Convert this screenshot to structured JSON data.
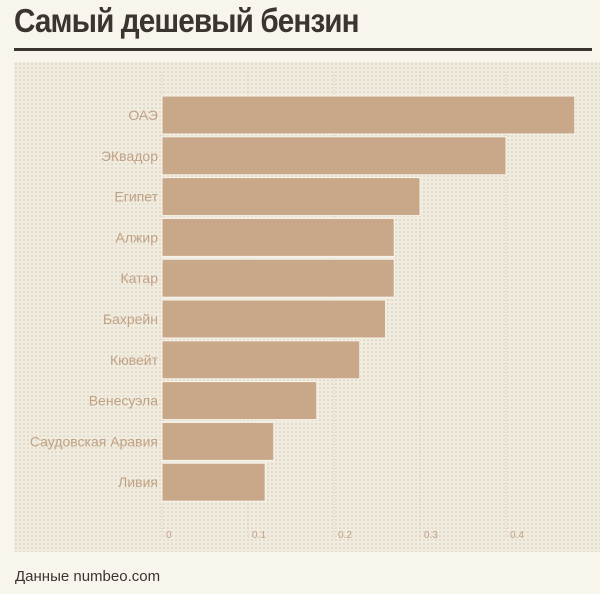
{
  "title": "Самый дешевый бензин",
  "source": "Данные numbeo.com",
  "colors": {
    "bar": "#c9a889",
    "bar_edge": "#f8f5ed",
    "label": "#c0a183",
    "grid": "#d5cbb8",
    "title": "#3b3530"
  },
  "chart_data": {
    "type": "bar",
    "orientation": "horizontal",
    "title": "Самый дешевый бензин",
    "categories": [
      "ОАЭ",
      "ЭКвадор",
      "Египет",
      "Алжир",
      "Катар",
      "Бахрейн",
      "Кювейт",
      "Венесуэла",
      "Саудовская Аравия",
      "Ливия"
    ],
    "values": [
      0.48,
      0.4,
      0.3,
      0.27,
      0.27,
      0.26,
      0.23,
      0.18,
      0.13,
      0.12
    ],
    "x_ticks": [
      "0",
      "0.1",
      "0.2",
      "0.3",
      "0.4"
    ],
    "xlim": [
      0,
      0.48
    ],
    "grid": true,
    "xlabel": "",
    "ylabel": ""
  }
}
